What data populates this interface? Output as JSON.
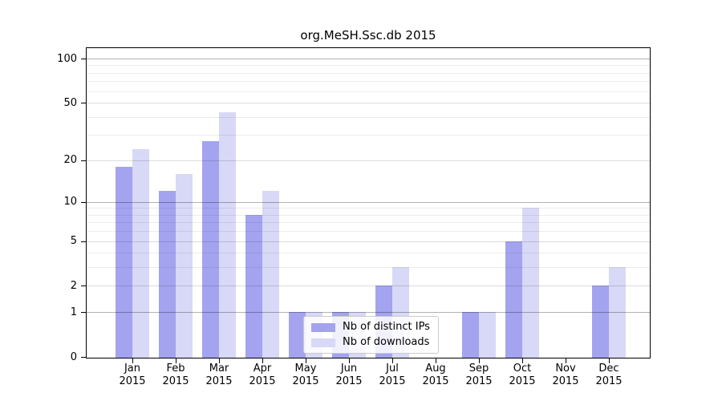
{
  "chart_data": {
    "type": "bar",
    "title": "org.MeSH.Ssc.db 2015",
    "categories": [
      "Jan 2015",
      "Feb 2015",
      "Mar 2015",
      "Apr 2015",
      "May 2015",
      "Jun 2015",
      "Jul 2015",
      "Aug 2015",
      "Sep 2015",
      "Oct 2015",
      "Nov 2015",
      "Dec 2015"
    ],
    "series": [
      {
        "name": "Nb of distinct IPs",
        "color": "#a3a3f0",
        "values": [
          18,
          12,
          27,
          8,
          1,
          1,
          2,
          0,
          1,
          5,
          0,
          2
        ]
      },
      {
        "name": "Nb of downloads",
        "color": "#d8d8f7",
        "values": [
          24,
          16,
          43,
          12,
          1,
          1,
          3,
          0,
          1,
          9,
          0,
          3
        ]
      }
    ],
    "xlabel": "",
    "ylabel": "",
    "yscale": "log10(1+x)",
    "ylim": [
      0,
      120
    ],
    "ytick_labels": [
      "100",
      "50",
      "20",
      "10",
      "5",
      "2",
      "1",
      "0"
    ],
    "yticks": [
      100,
      50,
      20,
      10,
      5,
      2,
      1,
      0
    ],
    "decade_gridlines": [
      1,
      10,
      100
    ],
    "major_gridlines": [
      2,
      5,
      20,
      50
    ],
    "minor_gridlines": [
      3,
      4,
      6,
      7,
      8,
      9,
      30,
      40,
      60,
      70,
      80,
      90
    ],
    "grid": true,
    "legend_position": "inside lower-center (over May–Jun bars)",
    "frame": "full box",
    "background_color": "#ffffff",
    "axis_color": "#000000"
  }
}
